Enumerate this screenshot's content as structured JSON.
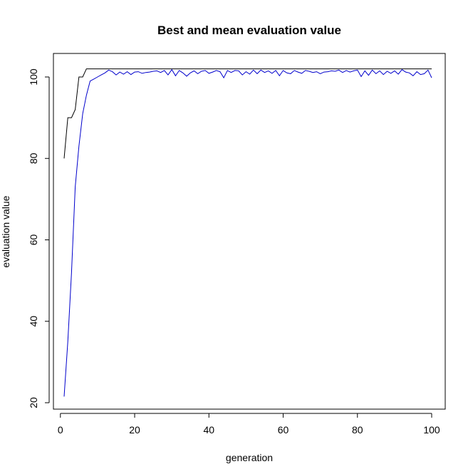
{
  "chart_data": {
    "type": "line",
    "title": "Best and mean evaluation value",
    "xlabel": "generation",
    "ylabel": "evaluation value",
    "xlim": [
      1,
      100
    ],
    "ylim": [
      20,
      102
    ],
    "xticks": [
      0,
      20,
      40,
      60,
      80,
      100
    ],
    "yticks": [
      20,
      40,
      60,
      80,
      100
    ],
    "grid": false,
    "series": [
      {
        "color": "#000000",
        "x": [
          1,
          2,
          3,
          4,
          5,
          6,
          7,
          8,
          9,
          10,
          11,
          12,
          13,
          14,
          15,
          16,
          17,
          18,
          19,
          20,
          21,
          22,
          23,
          24,
          25,
          26,
          27,
          28,
          29,
          30,
          31,
          32,
          33,
          34,
          35,
          36,
          37,
          38,
          39,
          40,
          41,
          42,
          43,
          44,
          45,
          46,
          47,
          48,
          49,
          50,
          51,
          52,
          53,
          54,
          55,
          56,
          57,
          58,
          59,
          60,
          61,
          62,
          63,
          64,
          65,
          66,
          67,
          68,
          69,
          70,
          71,
          72,
          73,
          74,
          75,
          76,
          77,
          78,
          79,
          80,
          81,
          82,
          83,
          84,
          85,
          86,
          87,
          88,
          89,
          90,
          91,
          92,
          93,
          94,
          95,
          96,
          97,
          98,
          99,
          100
        ],
        "values": [
          80,
          90,
          90,
          92,
          100,
          100,
          102,
          102,
          102,
          102,
          102,
          102,
          102,
          102,
          102,
          102,
          102,
          102,
          102,
          102,
          102,
          102,
          102,
          102,
          102,
          102,
          102,
          102,
          102,
          102,
          102,
          102,
          102,
          102,
          102,
          102,
          102,
          102,
          102,
          102,
          102,
          102,
          102,
          102,
          102,
          102,
          102,
          102,
          102,
          102,
          102,
          102,
          102,
          102,
          102,
          102,
          102,
          102,
          102,
          102,
          102,
          102,
          102,
          102,
          102,
          102,
          102,
          102,
          102,
          102,
          102,
          102,
          102,
          102,
          102,
          102,
          102,
          102,
          102,
          102,
          102,
          102,
          102,
          102,
          102,
          102,
          102,
          102,
          102,
          102,
          102,
          102,
          102,
          102,
          102,
          102,
          102,
          102,
          102,
          102
        ]
      },
      {
        "color": "#0000cc",
        "x": [
          1,
          2,
          3,
          4,
          5,
          6,
          7,
          8,
          9,
          10,
          11,
          12,
          13,
          14,
          15,
          16,
          17,
          18,
          19,
          20,
          21,
          22,
          23,
          24,
          25,
          26,
          27,
          28,
          29,
          30,
          31,
          32,
          33,
          34,
          35,
          36,
          37,
          38,
          39,
          40,
          41,
          42,
          43,
          44,
          45,
          46,
          47,
          48,
          49,
          50,
          51,
          52,
          53,
          54,
          55,
          56,
          57,
          58,
          59,
          60,
          61,
          62,
          63,
          64,
          65,
          66,
          67,
          68,
          69,
          70,
          71,
          72,
          73,
          74,
          75,
          76,
          77,
          78,
          79,
          80,
          81,
          82,
          83,
          84,
          85,
          86,
          87,
          88,
          89,
          90,
          91,
          92,
          93,
          94,
          95,
          96,
          97,
          98,
          99,
          100
        ],
        "values": [
          21.5,
          35,
          52,
          73,
          83,
          91,
          95.5,
          99,
          99.5,
          100,
          100.5,
          101,
          101.7,
          101.3,
          100.5,
          101.2,
          100.7,
          101.3,
          100.6,
          101.2,
          101.3,
          100.9,
          101.1,
          101.2,
          101.4,
          101.5,
          101.1,
          101.6,
          100.5,
          101.8,
          100.3,
          101.6,
          101,
          100.2,
          101,
          101.5,
          100.8,
          101.4,
          101.6,
          100.9,
          101.2,
          101.6,
          101.3,
          99.8,
          101.6,
          101.1,
          101.6,
          101.5,
          100.5,
          101.3,
          100.7,
          101.7,
          100.8,
          101.7,
          101.1,
          101.5,
          100.9,
          101.6,
          100.3,
          101.6,
          101,
          100.8,
          101.6,
          101.2,
          100.9,
          101.6,
          101.4,
          101.1,
          101.3,
          100.8,
          101.2,
          101.3,
          101.5,
          101.4,
          101.7,
          101.1,
          101.6,
          101.2,
          101.5,
          101.7,
          100.1,
          101.5,
          100.4,
          101.7,
          100.8,
          101.5,
          100.6,
          101.4,
          100.9,
          101.5,
          100.7,
          101.8,
          101.2,
          101,
          100.3,
          101.3,
          100.6,
          100.8,
          101.7,
          99.8
        ]
      }
    ]
  }
}
